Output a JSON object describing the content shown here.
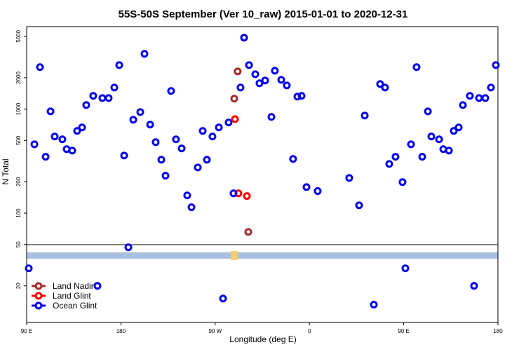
{
  "chart_data": {
    "type": "scatter",
    "title": "55S-50S September (Ver 10_raw)   2015-01-01 to 2020-12-31",
    "x_label": "Longitude (deg E)",
    "y_label": "N Total",
    "log_y": true,
    "xlim": [
      90,
      540
    ],
    "ylim": [
      8.9,
      6200
    ],
    "xticks": [
      {
        "value": 90,
        "label": "90 E"
      },
      180,
      {
        "value": 270,
        "label": "90 W"
      },
      {
        "value": 360,
        "label": "0"
      },
      {
        "value": 450,
        "label": "90 E"
      },
      {
        "value": 540,
        "label": "180"
      }
    ],
    "yticks": [
      20,
      50,
      100,
      200,
      500,
      1000,
      2000,
      5000
    ],
    "legend": "bottom-left",
    "series": [
      {
        "name": "Land Nadir",
        "color": "#a52a2a",
        "x": [
          291.5,
          288.2,
          301.6
        ],
        "values": [
          2303,
          1259,
          66
        ]
      },
      {
        "name": "Land Glint",
        "color": "#ff0000",
        "x": [
          288.9,
          292.2,
          300.3
        ],
        "values": [
          802,
          155,
          146
        ]
      },
      {
        "name": "Ocean Glint",
        "color": "#0000ee",
        "x": [
          97.4,
          102.7,
          108.1,
          112.8,
          116.8,
          124.1,
          128.2,
          133.5,
          138.2,
          142.9,
          146.9,
          153.6,
          162.3,
          168.3,
          173.7,
          178.4,
          183.1,
          187.1,
          191.8,
          198.5,
          202.5,
          207.9,
          213.2,
          218.6,
          222.6,
          227.9,
          232.6,
          238.0,
          243.3,
          247.4,
          253.4,
          258.1,
          262.1,
          267.4,
          273.5,
          277.5,
          282.8,
          287.5,
          294.2,
          297.6,
          302.3,
          308.3,
          312.3,
          317.7,
          323.7,
          327.0,
          333.1,
          338.4,
          344.4,
          348.5,
          352.5,
          357.2,
          367.9,
          398.0,
          407.4,
          412.8,
          421.5,
          427.5,
          432.2,
          436.2,
          442.2,
          448.9,
          451.6,
          457.0,
          462.3,
          467.7,
          473.1,
          476.4,
          483.8,
          487.8,
          493.2,
          497.8,
          502.5,
          506.5,
          513.2,
          521.9,
          527.9,
          533.3,
          538.0,
          92.0,
          157.6,
          517.2
        ],
        "values": [
          459,
          2530,
          348,
          951,
          545,
          512,
          412,
          399,
          617,
          667,
          1094,
          1340,
          1277,
          1277,
          1611,
          2649,
          358,
          47,
          790,
          937,
          3396,
          709,
          481,
          326,
          229,
          1493,
          512,
          419,
          148,
          114,
          275,
          617,
          326,
          545,
          667,
          15.1,
          743,
          155,
          1611,
          4853,
          2649,
          2163,
          1770,
          1883,
          841,
          2339,
          1911,
          1689,
          332,
          1318,
          1340,
          178,
          163,
          218,
          119,
          867,
          13.2,
          1742,
          1611,
          297,
          348,
          199,
          29.5,
          459,
          2530,
          348,
          951,
          545,
          512,
          412,
          399,
          617,
          667,
          1094,
          1340,
          1277,
          1277,
          1611,
          2649,
          29.5,
          20,
          20
        ]
      }
    ]
  }
}
